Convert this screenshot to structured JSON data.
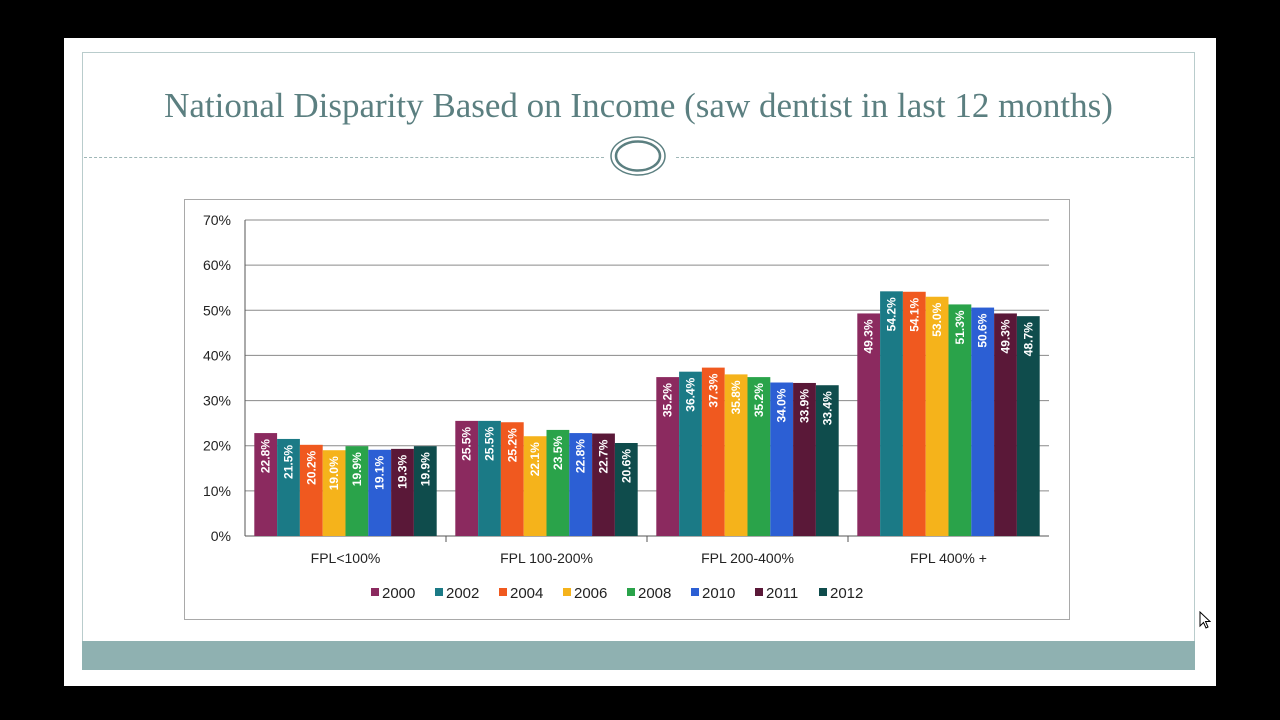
{
  "slide": {
    "title": "National Disparity Based on Income (saw dentist in last 12 months)"
  },
  "colors": {
    "title": "#5b7f80",
    "footer_band": "#8fb1b1",
    "series": [
      "#8b2a5f",
      "#1b7a86",
      "#f0591f",
      "#f5b31b",
      "#2aa34a",
      "#2c5fd4",
      "#5a1838",
      "#0f4c4c"
    ]
  },
  "chart_data": {
    "type": "bar",
    "categories": [
      "FPL<100%",
      "FPL 100-200%",
      "FPL 200-400%",
      "FPL 400% +"
    ],
    "series": [
      {
        "name": "2000",
        "values": [
          22.8,
          25.5,
          35.2,
          49.3
        ]
      },
      {
        "name": "2002",
        "values": [
          21.5,
          25.5,
          36.4,
          54.2
        ]
      },
      {
        "name": "2004",
        "values": [
          20.2,
          25.2,
          37.3,
          54.1
        ]
      },
      {
        "name": "2006",
        "values": [
          19.0,
          22.1,
          35.8,
          53.0
        ]
      },
      {
        "name": "2008",
        "values": [
          19.9,
          23.5,
          35.2,
          51.3
        ]
      },
      {
        "name": "2010",
        "values": [
          19.1,
          22.8,
          34.0,
          50.6
        ]
      },
      {
        "name": "2011",
        "values": [
          19.3,
          22.7,
          33.9,
          49.3
        ]
      },
      {
        "name": "2012",
        "values": [
          19.9,
          20.6,
          33.4,
          48.7
        ]
      }
    ],
    "value_format": "percent_one_decimal",
    "yticks": [
      "0%",
      "10%",
      "20%",
      "30%",
      "40%",
      "50%",
      "60%",
      "70%"
    ],
    "ylim": [
      0,
      70
    ],
    "grid": true,
    "legend_position": "bottom"
  },
  "cursor": "arrow-cursor-icon"
}
